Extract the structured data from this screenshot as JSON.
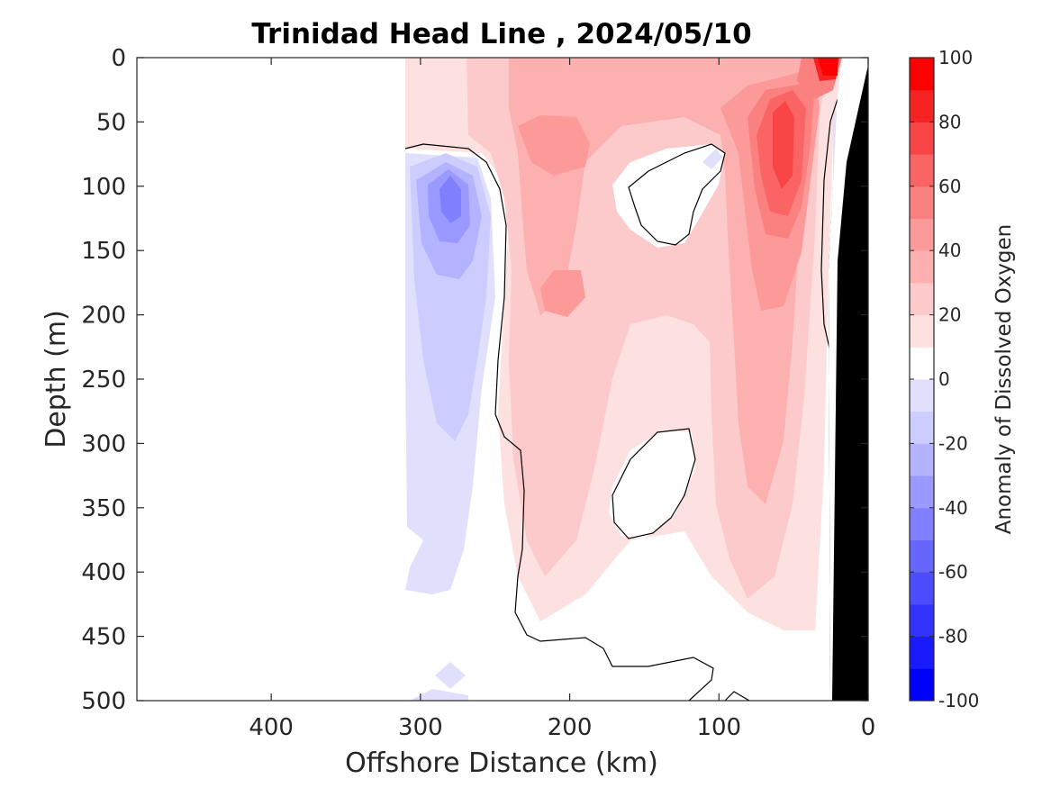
{
  "chart_data": {
    "type": "heatmap",
    "title": "Trinidad Head Line , 2024/05/10",
    "xlabel": "Offshore Distance (km)",
    "ylabel": "Depth (m)",
    "x_ticks": [
      "400",
      "300",
      "200",
      "100",
      "0"
    ],
    "y_ticks": [
      "0",
      "50",
      "100",
      "150",
      "200",
      "250",
      "300",
      "350",
      "400",
      "450",
      "500"
    ],
    "xlim": [
      490,
      0
    ],
    "ylim": [
      0,
      500
    ],
    "x_reversed": true,
    "y_reversed": true,
    "colorbar": {
      "label": "Anomaly of Dissolved Oxygen",
      "ticks": [
        "100",
        "80",
        "60",
        "40",
        "20",
        "0",
        "-20",
        "-40",
        "-60",
        "-80",
        "-100"
      ],
      "range": [
        -100,
        100
      ],
      "levels": [
        -100,
        -90,
        -80,
        -70,
        -60,
        -50,
        -40,
        -30,
        -20,
        -10,
        0,
        10,
        20,
        30,
        40,
        50,
        60,
        70,
        80,
        90,
        100
      ],
      "colors": [
        "#0000ff",
        "#1a1aff",
        "#3333ff",
        "#4d4dff",
        "#6666ff",
        "#8080ff",
        "#9999ff",
        "#b3b3ff",
        "#ccccff",
        "#e0e0fc",
        "#ffffff",
        "#ffffff",
        "#fde0e0",
        "#fccaca",
        "#fcb0b0",
        "#fc9999",
        "#fb8080",
        "#fa6464",
        "#f84444",
        "#f72222",
        "#ff0000"
      ]
    },
    "data_extent_x_km": [
      310,
      0
    ],
    "grid": false,
    "anomaly_features": [
      {
        "feature": "positive core near shelf",
        "x_km": 55,
        "depth_m": 100,
        "value": 75
      },
      {
        "feature": "surface maximum at coast",
        "x_km": 25,
        "depth_m": 5,
        "value": 95
      },
      {
        "feature": "positive core mid-section",
        "x_km": 210,
        "depth_m": 70,
        "value": 45
      },
      {
        "feature": "negative core offshore",
        "x_km": 280,
        "depth_m": 115,
        "value": -45
      },
      {
        "feature": "near-zero pocket",
        "x_km": 140,
        "depth_m": 115,
        "value": 0
      },
      {
        "feature": "near-zero pocket deep",
        "x_km": 140,
        "depth_m": 340,
        "value": 0
      }
    ]
  }
}
